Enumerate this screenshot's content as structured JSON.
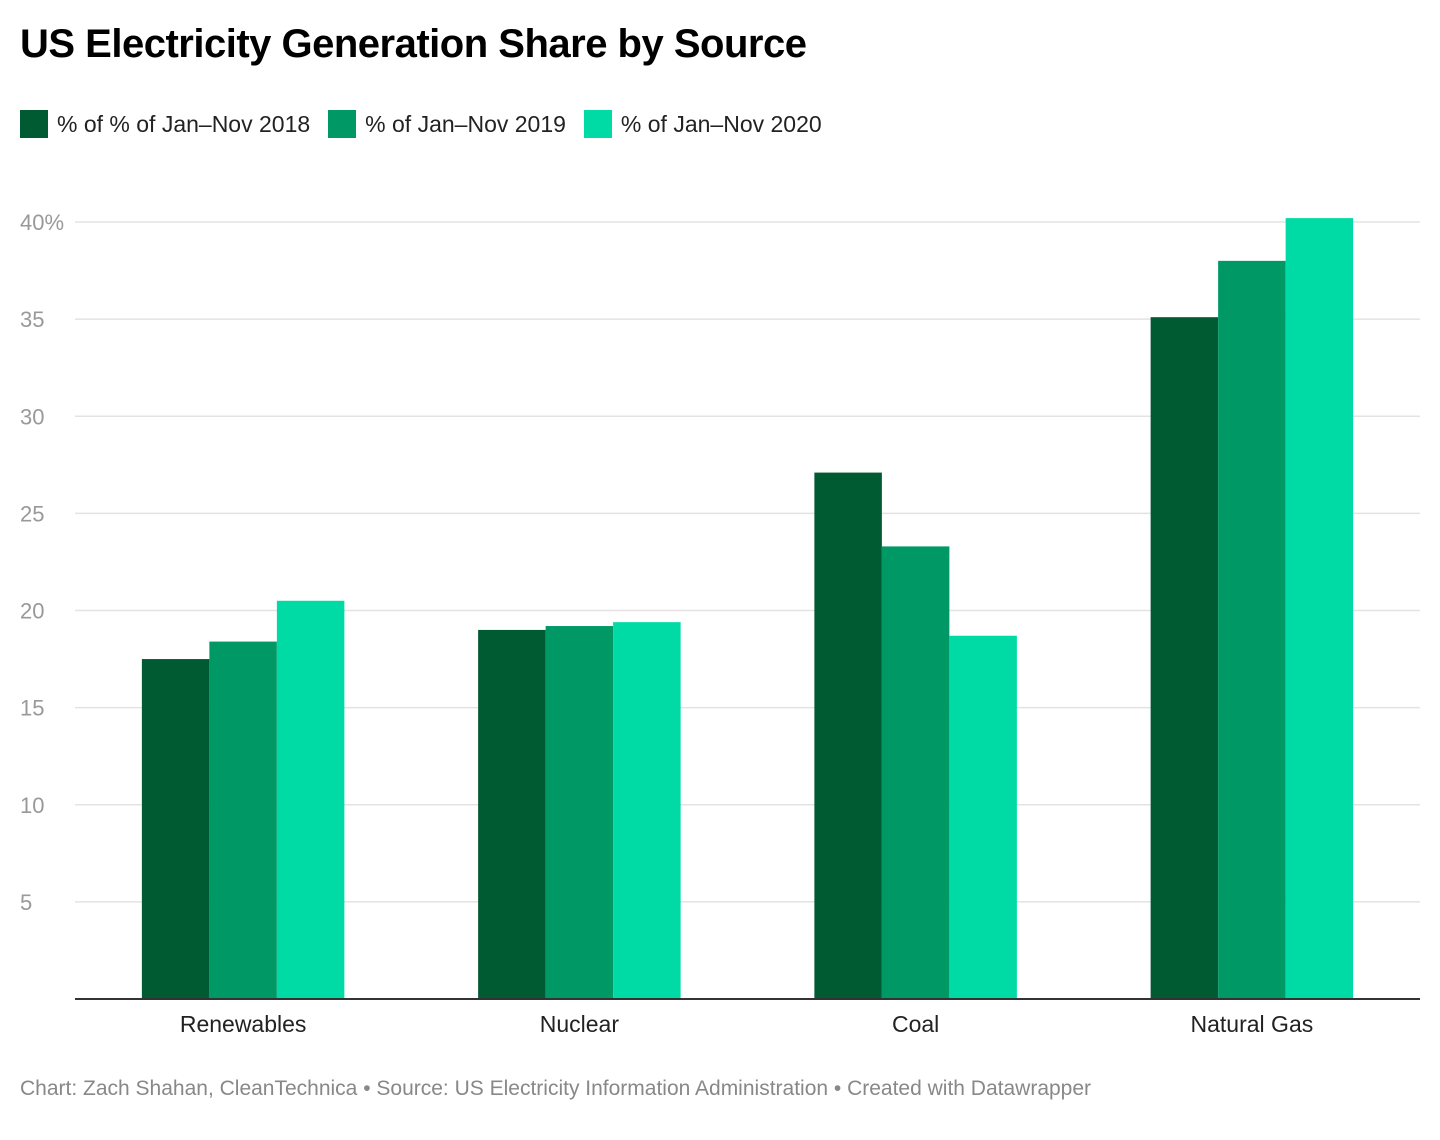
{
  "title": "US Electricity Generation Share by Source",
  "footer": "Chart: Zach Shahan, CleanTechnica • Source: US Electricity Information Administration • Created with Datawrapper",
  "chart_data": {
    "type": "bar",
    "title": "US Electricity Generation Share by Source",
    "categories": [
      "Renewables",
      "Nuclear",
      "Coal",
      "Natural Gas"
    ],
    "series": [
      {
        "name": "% of % of Jan–Nov 2018",
        "color": "#005a32",
        "values": [
          17.5,
          19.0,
          27.1,
          35.1
        ]
      },
      {
        "name": "% of Jan–Nov 2019",
        "color": "#009966",
        "values": [
          18.4,
          19.2,
          23.3,
          38.0
        ]
      },
      {
        "name": "% of Jan–Nov 2020",
        "color": "#00dba6",
        "values": [
          20.5,
          19.4,
          18.7,
          40.2
        ]
      }
    ],
    "yticks": [
      5,
      10,
      15,
      20,
      25,
      30,
      35,
      40
    ],
    "ytick_labels": [
      "5",
      "10",
      "15",
      "20",
      "25",
      "30",
      "35",
      "40%"
    ],
    "ylim": [
      0,
      40
    ],
    "xlabel": "",
    "ylabel": "",
    "grid": true,
    "legend_position": "top-left"
  }
}
